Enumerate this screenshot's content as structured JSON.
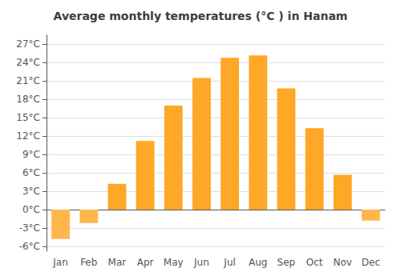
{
  "chart_data": {
    "type": "bar",
    "title": "Average monthly temperatures (°C ) in Hanam",
    "categories": [
      "Jan",
      "Feb",
      "Mar",
      "Apr",
      "May",
      "Jun",
      "Jul",
      "Aug",
      "Sep",
      "Oct",
      "Nov",
      "Dec"
    ],
    "values": [
      -4.8,
      -2.2,
      4.2,
      11.2,
      17.0,
      21.5,
      24.8,
      25.2,
      19.8,
      13.3,
      5.7,
      -1.8
    ],
    "colors": [
      "#FFB74D",
      "#FFB74D",
      "#FFA726",
      "#FFA726",
      "#FFA726",
      "#FFA726",
      "#FFA726",
      "#FFA726",
      "#FFA726",
      "#FFA726",
      "#FFA726",
      "#FFB74D"
    ],
    "ylim": [
      -6.8,
      28.5
    ],
    "yticks": [
      {
        "value": -6,
        "label": "-6°C"
      },
      {
        "value": -3,
        "label": "-3°C"
      },
      {
        "value": 0,
        "label": "0°C"
      },
      {
        "value": 3,
        "label": "3°C"
      },
      {
        "value": 6,
        "label": "6°C"
      },
      {
        "value": 9,
        "label": "9°C"
      },
      {
        "value": 12,
        "label": "12°C"
      },
      {
        "value": 15,
        "label": "15°C"
      },
      {
        "value": 18,
        "label": "18°C"
      },
      {
        "value": 21,
        "label": "21°C"
      },
      {
        "value": 24,
        "label": "24°C"
      },
      {
        "value": 27,
        "label": "27°C"
      }
    ],
    "grid": true
  }
}
